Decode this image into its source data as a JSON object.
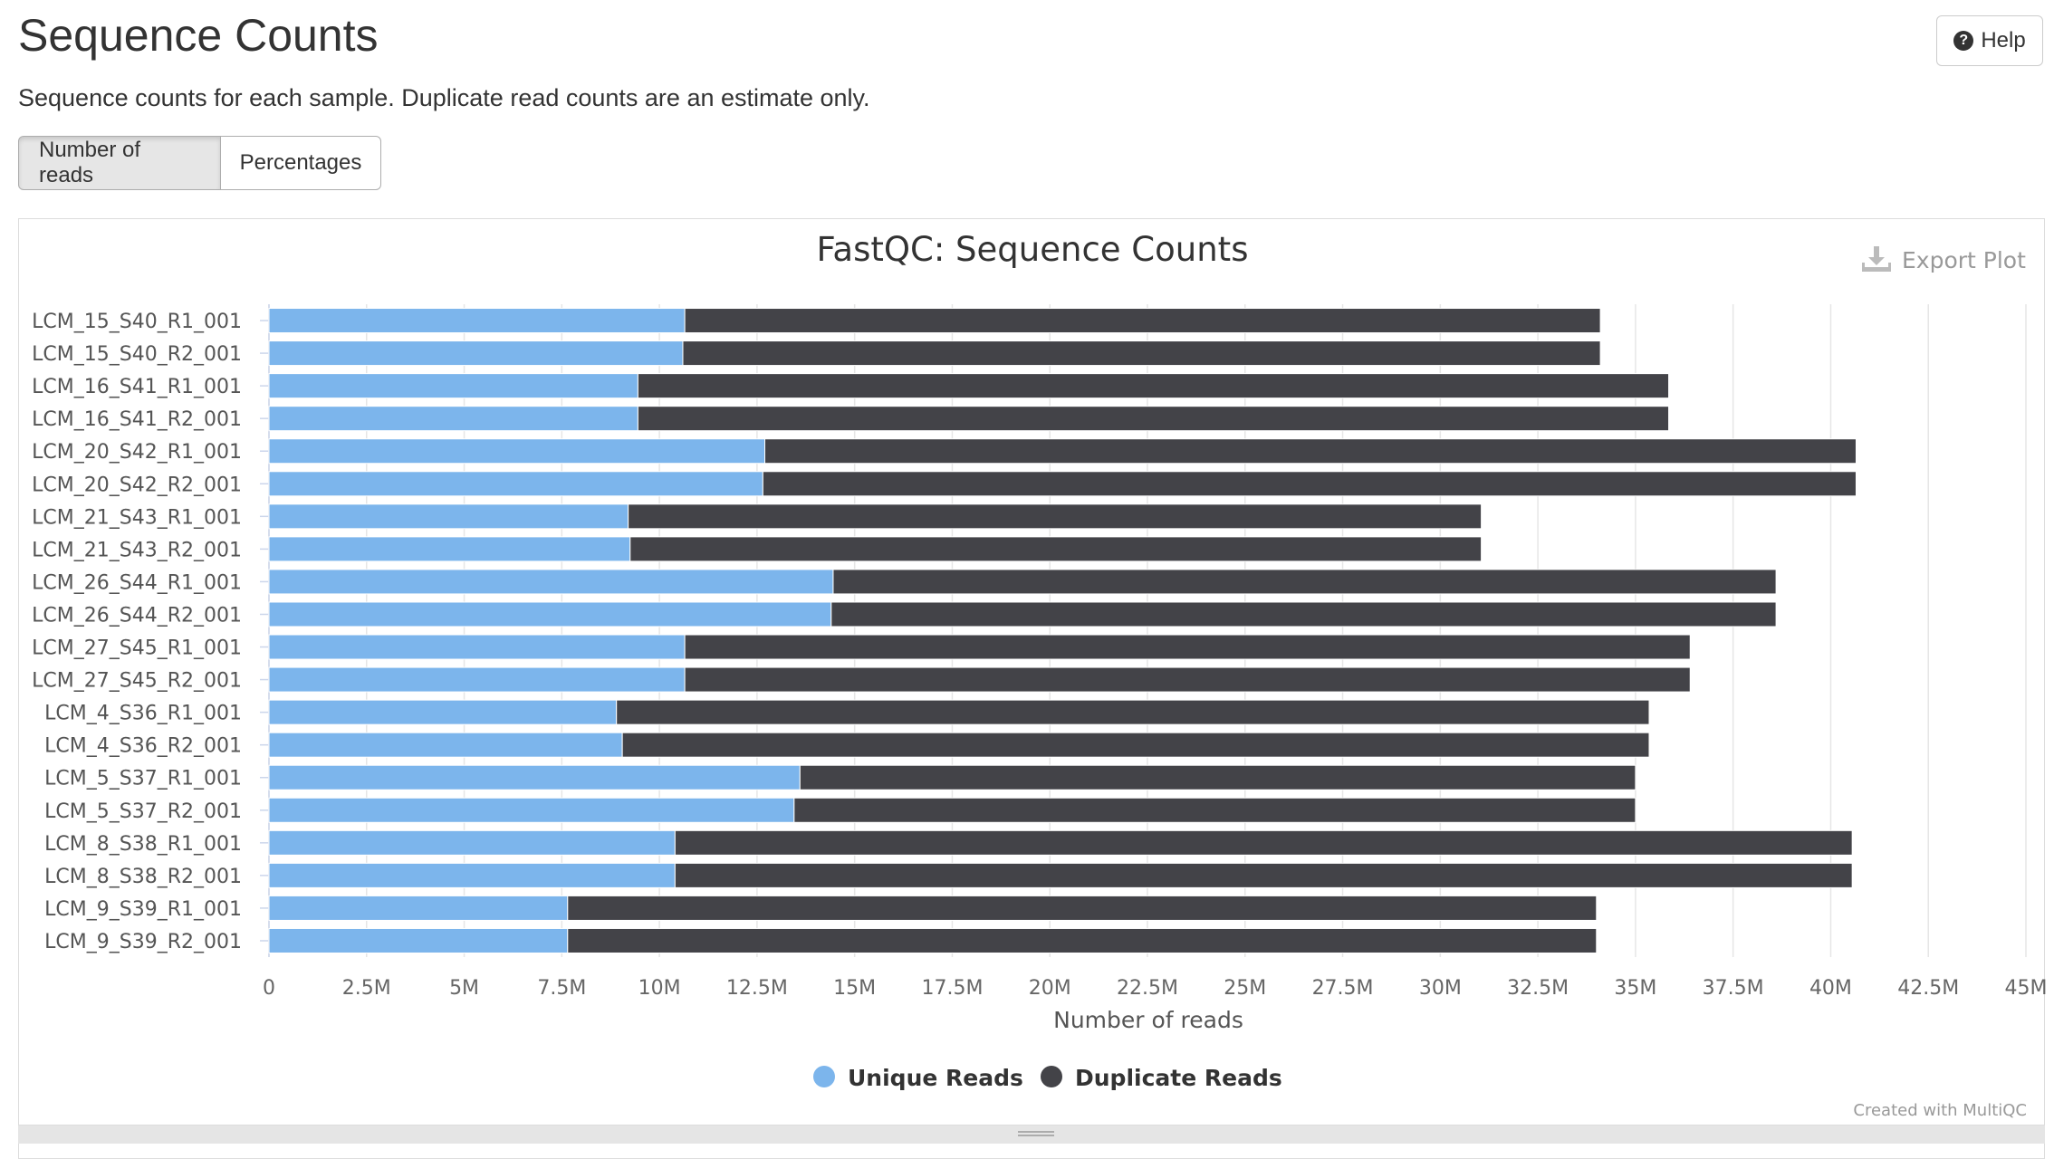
{
  "header": {
    "title": "Sequence Counts",
    "help_label": "Help",
    "help_icon": "question-circle-icon",
    "subtitle": "Sequence counts for each sample. Duplicate read counts are an estimate only."
  },
  "toggle": {
    "reads_label": "Number of reads",
    "percent_label": "Percentages",
    "selected": "Number of reads"
  },
  "plot": {
    "export_label": "Export Plot",
    "export_icon": "download-icon",
    "credit": "Created with MultiQC"
  },
  "colors": {
    "unique": "#7cb5ec",
    "duplicate": "#434348"
  },
  "chart_data": {
    "type": "bar",
    "orientation": "horizontal",
    "stacked": true,
    "title": "FastQC: Sequence Counts",
    "xlabel": "Number of reads",
    "ylabel": "",
    "xlim": [
      0,
      45000000
    ],
    "xticks": [
      "0",
      "2.5M",
      "5M",
      "7.5M",
      "10M",
      "12.5M",
      "15M",
      "17.5M",
      "20M",
      "22.5M",
      "25M",
      "27.5M",
      "30M",
      "32.5M",
      "35M",
      "37.5M",
      "40M",
      "42.5M",
      "45M"
    ],
    "grid": true,
    "legend_position": "bottom-center",
    "categories": [
      "LCM_15_S40_R1_001",
      "LCM_15_S40_R2_001",
      "LCM_16_S41_R1_001",
      "LCM_16_S41_R2_001",
      "LCM_20_S42_R1_001",
      "LCM_20_S42_R2_001",
      "LCM_21_S43_R1_001",
      "LCM_21_S43_R2_001",
      "LCM_26_S44_R1_001",
      "LCM_26_S44_R2_001",
      "LCM_27_S45_R1_001",
      "LCM_27_S45_R2_001",
      "LCM_4_S36_R1_001",
      "LCM_4_S36_R2_001",
      "LCM_5_S37_R1_001",
      "LCM_5_S37_R2_001",
      "LCM_8_S38_R1_001",
      "LCM_8_S38_R2_001",
      "LCM_9_S39_R1_001",
      "LCM_9_S39_R2_001"
    ],
    "series": [
      {
        "name": "Unique Reads",
        "values": [
          10650000,
          10600000,
          9450000,
          9450000,
          12700000,
          12650000,
          9200000,
          9250000,
          14450000,
          14400000,
          10650000,
          10650000,
          8900000,
          9050000,
          13600000,
          13450000,
          10400000,
          10400000,
          7650000,
          7650000
        ]
      },
      {
        "name": "Duplicate Reads",
        "values": [
          23450000,
          23500000,
          26400000,
          26400000,
          27950000,
          28000000,
          21850000,
          21800000,
          24150000,
          24200000,
          25750000,
          25750000,
          26450000,
          26300000,
          21400000,
          21550000,
          30150000,
          30150000,
          26350000,
          26350000
        ]
      }
    ]
  }
}
